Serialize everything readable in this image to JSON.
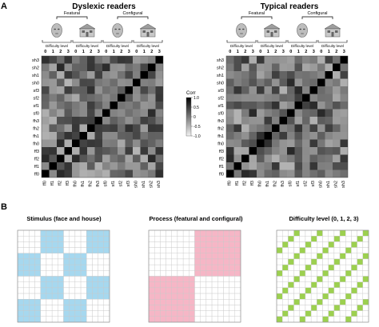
{
  "panel_a": {
    "letter": "A",
    "left_title": "Dyslexic readers",
    "right_title": "Typical readers",
    "featural_label": "Featural",
    "configural_label": "Configural",
    "difficulty_label": "Difficulty level",
    "difficulty_ticks": [
      "0",
      "1",
      "2",
      "3"
    ],
    "row_labels": [
      "sh3",
      "sh2",
      "sh1",
      "sh0",
      "sf3",
      "sf2",
      "sf1",
      "sf0",
      "fh3",
      "fh2",
      "fh1",
      "fh0",
      "ff3",
      "ff2",
      "ff1",
      "ff0"
    ],
    "col_labels": [
      "ff0",
      "ff1",
      "ff2",
      "ff3",
      "fh0",
      "fh1",
      "fh2",
      "fh3",
      "sf0",
      "sf1",
      "sf2",
      "sf3",
      "sh0",
      "sh1",
      "sh2",
      "sh3"
    ],
    "colorbar_title": "Corr",
    "colorbar_ticks": [
      "1.0",
      "0.5",
      "0",
      "-0.5",
      "-1.0"
    ],
    "icons": [
      "face-icon",
      "house-icon",
      "face-icon",
      "house-icon"
    ]
  },
  "panel_b": {
    "letter": "B",
    "titles": [
      "Stimulus (face and house)",
      "Process (featural and configural)",
      "Difficulty level (0, 1, 2, 3)"
    ],
    "colors": {
      "stimulus": "#a6d8ef",
      "process": "#f6b6c6",
      "difficulty": "#9cd04f"
    }
  },
  "chart_data": {
    "type": "heatmap",
    "matrices": [
      {
        "title": "Dyslexic readers",
        "size": 16,
        "diagonal": 1.0,
        "value_range": [
          -1.0,
          1.0
        ]
      },
      {
        "title": "Typical readers",
        "size": 16,
        "diagonal": 1.0,
        "value_range": [
          -1.0,
          1.0
        ]
      }
    ],
    "rows": [
      "sh3",
      "sh2",
      "sh1",
      "sh0",
      "sf3",
      "sf2",
      "sf1",
      "sf0",
      "fh3",
      "fh2",
      "fh1",
      "fh0",
      "ff3",
      "ff2",
      "ff1",
      "ff0"
    ],
    "cols": [
      "ff0",
      "ff1",
      "ff2",
      "ff3",
      "fh0",
      "fh1",
      "fh2",
      "fh3",
      "sf0",
      "sf1",
      "sf2",
      "sf3",
      "sh0",
      "sh1",
      "sh2",
      "sh3"
    ],
    "colorbar": {
      "label": "Corr",
      "ticks": [
        1.0,
        0.5,
        0,
        -0.5,
        -1.0
      ]
    },
    "model_matrices": [
      "Stimulus (face and house)",
      "Process (featural and configural)",
      "Difficulty level (0, 1, 2, 3)"
    ]
  }
}
